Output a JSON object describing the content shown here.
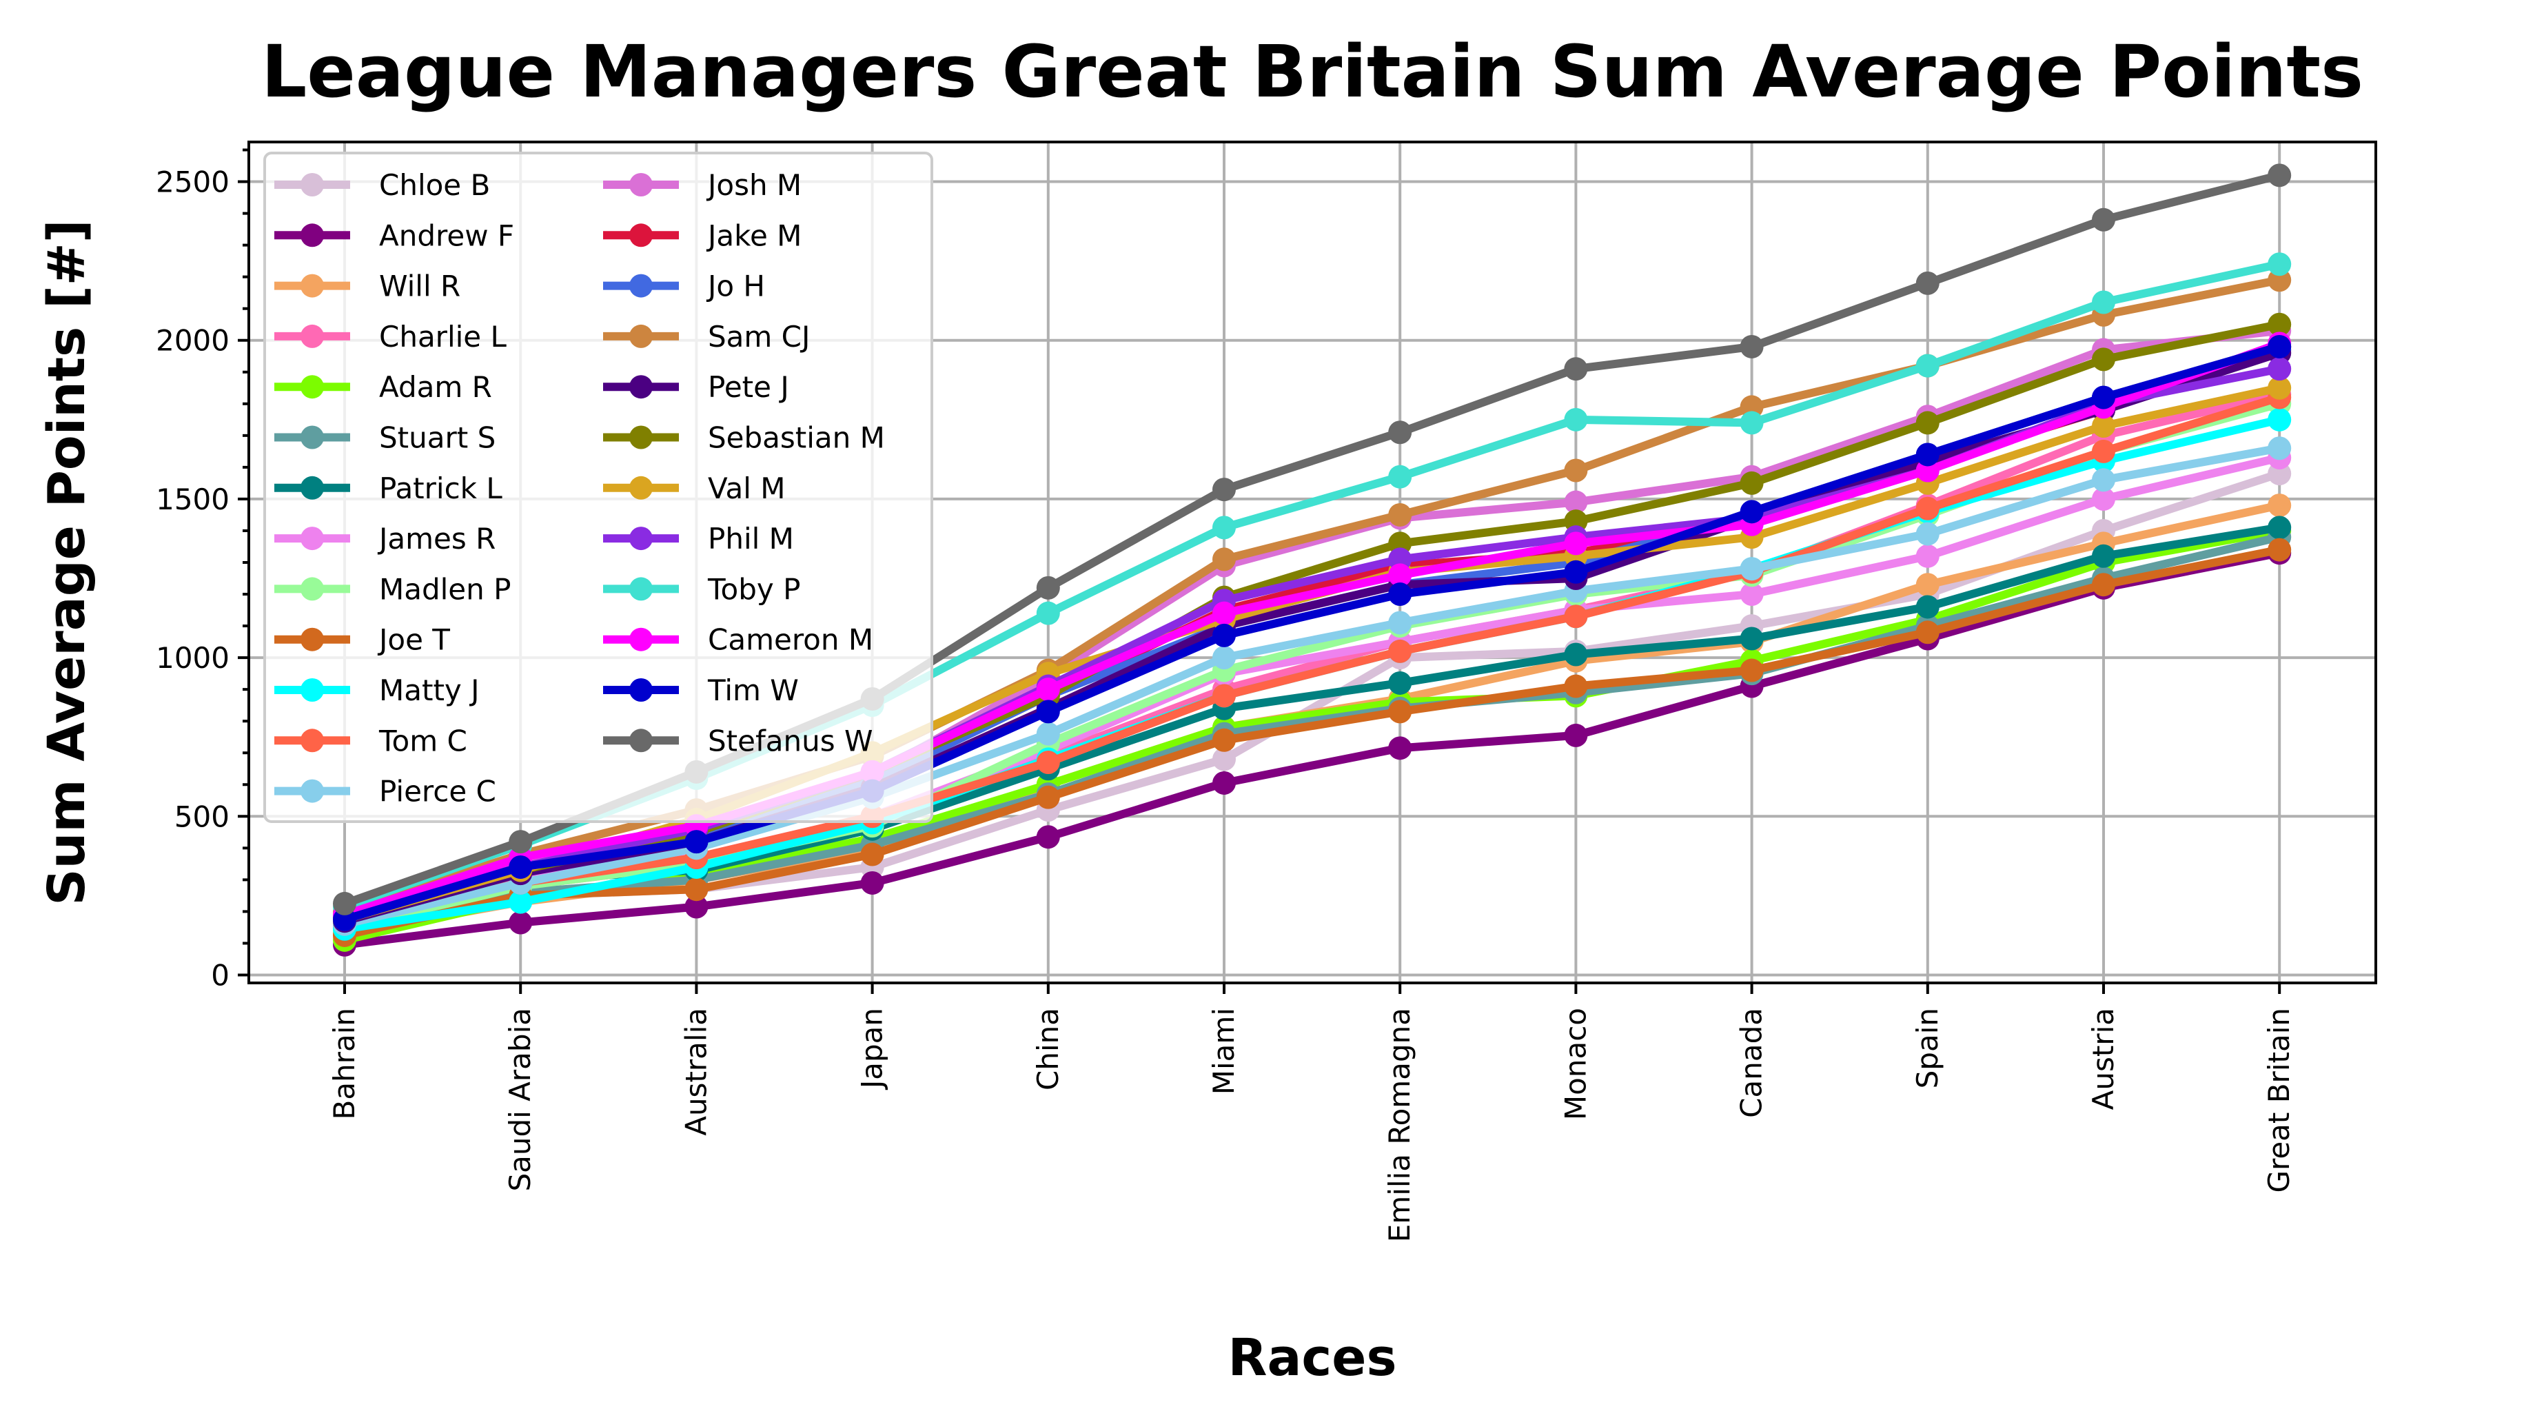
{
  "chart_data": {
    "type": "line",
    "title": "League Managers Great Britain Sum Average Points",
    "xlabel": "Races",
    "ylabel": "Sum Average Points [#]",
    "categories": [
      "Bahrain",
      "Saudi Arabia",
      "Australia",
      "Japan",
      "China",
      "Miami",
      "Emilia Romagna",
      "Monaco",
      "Canada",
      "Spain",
      "Austria",
      "Great Britain"
    ],
    "ylim": [
      -25,
      2625
    ],
    "yticks": [
      0,
      500,
      1000,
      1500,
      2000,
      2500
    ],
    "grid": true,
    "legend_position": "top-left",
    "series": [
      {
        "name": "Chloe B",
        "color": "#d8bfd8",
        "values": [
          120,
          250,
          270,
          340,
          520,
          680,
          1000,
          1020,
          1100,
          1200,
          1400,
          1580
        ]
      },
      {
        "name": "Andrew F",
        "color": "#800080",
        "values": [
          95,
          165,
          215,
          290,
          435,
          605,
          715,
          755,
          910,
          1060,
          1220,
          1330
        ]
      },
      {
        "name": "Will R",
        "color": "#f4a460",
        "values": [
          130,
          230,
          300,
          400,
          600,
          780,
          870,
          990,
          1050,
          1230,
          1360,
          1480
        ]
      },
      {
        "name": "Charlie L",
        "color": "#ff69b4",
        "values": [
          150,
          280,
          350,
          480,
          690,
          900,
          1050,
          1150,
          1270,
          1480,
          1700,
          1830
        ]
      },
      {
        "name": "Adam R",
        "color": "#7cfc00",
        "values": [
          110,
          240,
          320,
          430,
          600,
          780,
          860,
          880,
          990,
          1120,
          1300,
          1400
        ]
      },
      {
        "name": "Stuart S",
        "color": "#5f9ea0",
        "values": [
          140,
          260,
          300,
          410,
          570,
          760,
          840,
          890,
          950,
          1100,
          1250,
          1380
        ]
      },
      {
        "name": "Patrick L",
        "color": "#008080",
        "values": [
          160,
          300,
          330,
          460,
          650,
          840,
          920,
          1010,
          1060,
          1160,
          1320,
          1410
        ]
      },
      {
        "name": "James R",
        "color": "#ee82ee",
        "values": [
          170,
          310,
          370,
          500,
          710,
          950,
          1050,
          1150,
          1200,
          1320,
          1500,
          1630
        ]
      },
      {
        "name": "Madlen P",
        "color": "#98fb98",
        "values": [
          140,
          280,
          350,
          470,
          730,
          960,
          1100,
          1200,
          1260,
          1450,
          1650,
          1800
        ]
      },
      {
        "name": "Joe T",
        "color": "#d2691e",
        "values": [
          125,
          250,
          270,
          380,
          560,
          740,
          830,
          910,
          960,
          1080,
          1230,
          1340
        ]
      },
      {
        "name": "Matty J",
        "color": "#00ffff",
        "values": [
          145,
          230,
          340,
          480,
          680,
          880,
          1020,
          1130,
          1280,
          1460,
          1620,
          1750
        ]
      },
      {
        "name": "Tom C",
        "color": "#ff6347",
        "values": [
          170,
          290,
          370,
          500,
          670,
          880,
          1020,
          1130,
          1270,
          1470,
          1650,
          1820
        ]
      },
      {
        "name": "Pierce C",
        "color": "#87ceeb",
        "values": [
          160,
          290,
          400,
          560,
          760,
          1000,
          1110,
          1210,
          1280,
          1390,
          1560,
          1660
        ]
      },
      {
        "name": "Josh M",
        "color": "#da70d6",
        "values": [
          190,
          360,
          470,
          630,
          940,
          1290,
          1440,
          1490,
          1570,
          1760,
          1970,
          2030
        ]
      },
      {
        "name": "Jake M",
        "color": "#dc143c",
        "values": [
          180,
          340,
          450,
          620,
          880,
          1150,
          1290,
          1330,
          1430,
          1610,
          1780,
          1980
        ]
      },
      {
        "name": "Jo H",
        "color": "#4169e1",
        "values": [
          185,
          330,
          430,
          610,
          880,
          1100,
          1230,
          1300,
          1450,
          1640,
          1820,
          1970
        ]
      },
      {
        "name": "Sam CJ",
        "color": "#cd853f",
        "values": [
          200,
          380,
          520,
          690,
          960,
          1310,
          1450,
          1590,
          1790,
          1920,
          2080,
          2190
        ]
      },
      {
        "name": "Pete J",
        "color": "#4b0082",
        "values": [
          170,
          320,
          420,
          590,
          840,
          1100,
          1230,
          1250,
          1440,
          1620,
          1780,
          1960
        ]
      },
      {
        "name": "Sebastian M",
        "color": "#808000",
        "values": [
          180,
          330,
          450,
          640,
          880,
          1190,
          1360,
          1430,
          1550,
          1740,
          1940,
          2050
        ]
      },
      {
        "name": "Val M",
        "color": "#daa520",
        "values": [
          175,
          330,
          490,
          700,
          950,
          1120,
          1270,
          1320,
          1380,
          1550,
          1730,
          1850
        ]
      },
      {
        "name": "Phil M",
        "color": "#8a2be2",
        "values": [
          185,
          340,
          460,
          640,
          910,
          1180,
          1310,
          1380,
          1440,
          1590,
          1800,
          1910
        ]
      },
      {
        "name": "Toby P",
        "color": "#40e0d0",
        "values": [
          215,
          410,
          620,
          850,
          1140,
          1410,
          1570,
          1750,
          1740,
          1920,
          2120,
          2240
        ]
      },
      {
        "name": "Cameron M",
        "color": "#ff00ff",
        "values": [
          190,
          370,
          470,
          640,
          900,
          1140,
          1260,
          1360,
          1420,
          1590,
          1790,
          1990
        ]
      },
      {
        "name": "Tim W",
        "color": "#0000cd",
        "values": [
          175,
          340,
          420,
          580,
          830,
          1070,
          1200,
          1270,
          1460,
          1640,
          1820,
          1980
        ]
      },
      {
        "name": "Stefanus W",
        "color": "#696969",
        "values": [
          225,
          420,
          640,
          870,
          1220,
          1530,
          1710,
          1910,
          1980,
          2180,
          2380,
          2520
        ]
      }
    ]
  }
}
